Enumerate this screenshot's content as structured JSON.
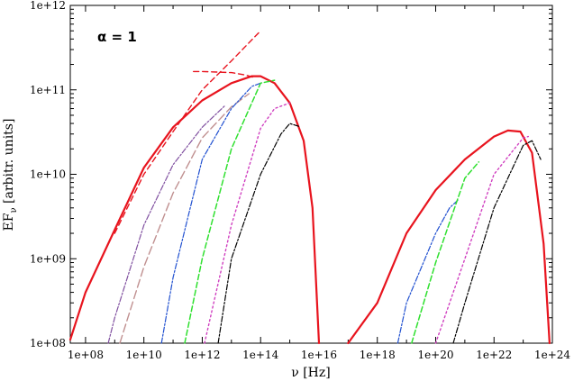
{
  "chart_data": {
    "type": "line",
    "xlabel": "ν [Hz]",
    "ylabel": "EF",
    "ylabel_sub": "ν",
    "ylabel_rest": " [arbitr. units]",
    "annotation": "α = 1",
    "xscale": "log",
    "yscale": "log",
    "xlim": [
      30000000.0,
      1e+24
    ],
    "ylim": [
      100000000.0,
      1000000000000.0
    ],
    "x_ticks": [
      100000000.0,
      10000000000.0,
      1000000000000.0,
      100000000000000.0,
      1e+16,
      1e+18,
      1e+20,
      1e+22,
      1e+24
    ],
    "x_tick_labels": [
      "1e+08",
      "1e+10",
      "1e+12",
      "1e+14",
      "1e+16",
      "1e+18",
      "1e+20",
      "1e+22",
      "1e+24"
    ],
    "y_ticks": [
      100000000.0,
      1000000000.0,
      10000000000.0,
      100000000000.0,
      1000000000000.0
    ],
    "y_tick_labels": [
      "1e+08",
      "1e+09",
      "1e+10",
      "1e+11",
      "1e+12"
    ],
    "grid": false,
    "legend": "none",
    "series": [
      {
        "color": "#e8141e",
        "dash": "",
        "width": 2.2,
        "x": [
          30000000.0,
          100000000.0,
          1000000000.0,
          10000000000.0,
          100000000000.0,
          1000000000000.0,
          10000000000000.0,
          50000000000000.0,
          100000000000000.0,
          300000000000000.0,
          1000000000000000.0,
          3000000000000000.0,
          6000000000000000.0,
          1e+16
        ],
        "y": [
          110000000.0,
          400000000.0,
          2200000000.0,
          12000000000.0,
          36000000000.0,
          75000000000.0,
          120000000000.0,
          145000000000.0,
          145000000000.0,
          120000000000.0,
          70000000000.0,
          25000000000.0,
          4000000000.0,
          100000000.0
        ]
      },
      {
        "color": "#e8141e",
        "dash": "6,4",
        "width": 1.4,
        "x": [
          1000000000.0,
          10000000000.0,
          100000000000.0,
          1000000000000.0,
          10000000000000.0,
          100000000000000.0
        ],
        "y": [
          2000000000.0,
          10000000000.0,
          32000000000.0,
          100000000000.0,
          220000000000.0,
          500000000000.0
        ]
      },
      {
        "color": "#e8141e",
        "dash": "6,4",
        "width": 1.4,
        "x": [
          500000000000.0,
          1000000000000.0,
          10000000000000.0,
          30000000000000.0,
          60000000000000.0
        ],
        "y": [
          165000000000.0,
          165000000000.0,
          160000000000.0,
          150000000000.0,
          140000000000.0
        ]
      },
      {
        "color": "#8050a0",
        "dash": "6,2,2,2",
        "width": 1.2,
        "x": [
          600000000.0,
          1000000000.0,
          10000000000.0,
          100000000000.0,
          1000000000000.0,
          6000000000000.0
        ],
        "y": [
          100000000.0,
          200000000.0,
          2500000000.0,
          13000000000.0,
          36000000000.0,
          65000000000.0
        ]
      },
      {
        "color": "#c09090",
        "dash": "9,4",
        "width": 1.4,
        "x": [
          1500000000.0,
          10000000000.0,
          100000000000.0,
          1000000000000.0,
          10000000000000.0,
          40000000000000.0
        ],
        "y": [
          100000000.0,
          800000000.0,
          6000000000.0,
          27000000000.0,
          63000000000.0,
          90000000000.0
        ]
      },
      {
        "color": "#2050d0",
        "dash": "6,2,2,2",
        "width": 1.2,
        "x": [
          40000000000.0,
          100000000000.0,
          1000000000000.0,
          10000000000000.0,
          50000000000000.0,
          100000000000000.0
        ],
        "y": [
          100000000.0,
          600000000.0,
          15000000000.0,
          60000000000.0,
          110000000000.0,
          120000000000.0
        ]
      },
      {
        "color": "#30e030",
        "dash": "6,3",
        "width": 1.5,
        "x": [
          250000000000.0,
          1000000000000.0,
          10000000000000.0,
          100000000000000.0,
          300000000000000.0
        ],
        "y": [
          100000000.0,
          1000000000.0,
          20000000000.0,
          120000000000.0,
          130000000000.0
        ]
      },
      {
        "color": "#d040c0",
        "dash": "2,3",
        "width": 1.4,
        "x": [
          1200000000000.0,
          10000000000000.0,
          100000000000000.0,
          300000000000000.0,
          1000000000000000.0
        ],
        "y": [
          100000000.0,
          2500000000.0,
          35000000000.0,
          60000000000.0,
          70000000000.0
        ]
      },
      {
        "color": "#000000",
        "dash": "6,2,2,2",
        "width": 1.2,
        "x": [
          3500000000000.0,
          10000000000000.0,
          100000000000000.0,
          500000000000000.0,
          1000000000000000.0,
          2000000000000000.0
        ],
        "y": [
          100000000.0,
          1000000000.0,
          10000000000.0,
          30000000000.0,
          40000000000.0,
          37000000000.0
        ]
      },
      {
        "color": "#e8141e",
        "dash": "",
        "width": 2.2,
        "x": [
          1e+17,
          1e+18,
          1e+19,
          1e+20,
          1e+21,
          1e+22,
          3e+22,
          8e+22,
          2e+23,
          5e+23,
          8e+23
        ],
        "y": [
          100000000.0,
          300000000.0,
          2000000000.0,
          6500000000.0,
          15000000000.0,
          28000000000.0,
          33000000000.0,
          32000000000.0,
          18000000000.0,
          1500000000.0,
          100000000.0
        ]
      },
      {
        "color": "#2050d0",
        "dash": "6,2,2,2",
        "width": 1.2,
        "x": [
          5e+18,
          1e+19,
          1e+20,
          3e+20,
          6e+20
        ],
        "y": [
          100000000.0,
          300000000.0,
          2000000000.0,
          4000000000.0,
          5000000000.0
        ]
      },
      {
        "color": "#30e030",
        "dash": "6,3",
        "width": 1.5,
        "x": [
          1.5e+19,
          1e+20,
          1e+21,
          3e+21
        ],
        "y": [
          100000000.0,
          900000000.0,
          9000000000.0,
          14000000000.0
        ]
      },
      {
        "color": "#d040c0",
        "dash": "2,3",
        "width": 1.4,
        "x": [
          1e+20,
          1e+21,
          1e+22,
          1e+23,
          1.5e+23
        ],
        "y": [
          100000000.0,
          1000000000.0,
          10000000000.0,
          27000000000.0,
          28000000000.0
        ]
      },
      {
        "color": "#000000",
        "dash": "6,2,2,2",
        "width": 1.2,
        "x": [
          4e+20,
          1e+21,
          1e+22,
          1e+23,
          2e+23,
          4e+23
        ],
        "y": [
          100000000.0,
          300000000.0,
          4000000000.0,
          22000000000.0,
          25000000000.0,
          15000000000.0
        ]
      }
    ]
  }
}
